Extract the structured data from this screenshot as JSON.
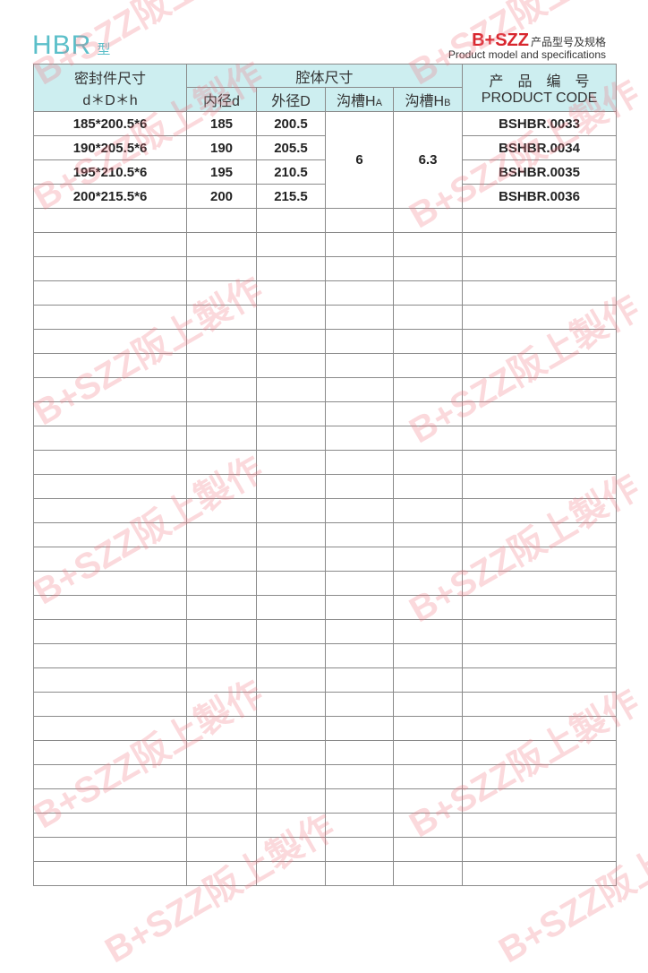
{
  "header": {
    "title": "HBR",
    "title_suffix": "型",
    "brand": "B+SZZ",
    "brand_sub": "产品型号及规格",
    "brand_en": "Product model and specifications",
    "brand_color": "#d8262e",
    "title_color": "#5bbfc9"
  },
  "table": {
    "col_seal": "密封件尺寸",
    "col_seal_sub": "d＊D＊h",
    "col_cavity": "腔体尺寸",
    "col_inner": "内径d",
    "col_outer": "外径D",
    "col_ha": "沟槽H",
    "col_ha_sub": "A",
    "col_hb": "沟槽H",
    "col_hb_sub": "B",
    "col_code": "产　品　编　号",
    "col_code_en": "PRODUCT CODE",
    "ha_value": "6",
    "hb_value": "6.3",
    "rows": [
      {
        "size": "185*200.5*6",
        "d": "185",
        "D": "200.5",
        "code": "BSHBR.0033"
      },
      {
        "size": "190*205.5*6",
        "d": "190",
        "D": "205.5",
        "code": "BSHBR.0034"
      },
      {
        "size": "195*210.5*6",
        "d": "195",
        "D": "210.5",
        "code": "BSHBR.0035"
      },
      {
        "size": "200*215.5*6",
        "d": "200",
        "D": "215.5",
        "code": "BSHBR.0036"
      }
    ]
  },
  "watermark": "B+SZZ阪上製作"
}
